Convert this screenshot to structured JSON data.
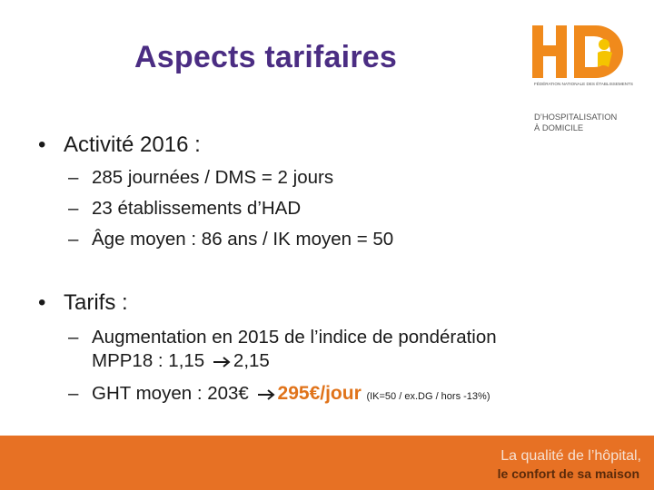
{
  "slide": {
    "title": "Aspects tarifaires",
    "bullets": [
      {
        "label": "Activité 2016 :",
        "items": [
          "285 journées / DMS = 2 jours",
          "23 établissements d’HAD",
          "Âge moyen : 86 ans / IK moyen = 50"
        ]
      },
      {
        "label": "Tarifs :",
        "items": [
          {
            "line1": "Augmentation en 2015 de l’indice de pondération",
            "line2_before": "MPP18 : 1,15",
            "line2_after": "2,15"
          },
          {
            "before": "GHT moyen : 203€",
            "highlight": "295€/jour",
            "note": "(IK=50 / ex.DG / hors -13%)"
          }
        ]
      }
    ]
  },
  "logo": {
    "mark": "HD",
    "small_text_1": "FÉDÉRATION NATIONALE DES ÉTABLISSEMENTS",
    "line1": "D’HOSPITALISATION",
    "line2": "À DOMICILE"
  },
  "footer": {
    "line1": "La qualité de l’hôpital,",
    "line2": "le confort de sa maison"
  },
  "colors": {
    "title": "#4b2d83",
    "accent": "#e0731a",
    "footer_bg": "#e77124",
    "logo_orange": "#f08a1c"
  }
}
